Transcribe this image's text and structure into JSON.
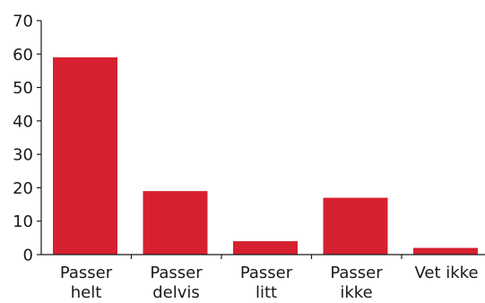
{
  "chart_data": {
    "type": "bar",
    "categories": [
      [
        "Passer",
        "helt"
      ],
      [
        "Passer",
        "delvis"
      ],
      [
        "Passer",
        "litt"
      ],
      [
        "Passer",
        "ikke"
      ],
      [
        "Vet ikke"
      ]
    ],
    "values": [
      59,
      19,
      4,
      17,
      2
    ],
    "ylim": [
      0,
      70
    ],
    "yticks": [
      0,
      10,
      20,
      30,
      40,
      50,
      60,
      70
    ],
    "title": "",
    "xlabel": "",
    "ylabel": "",
    "bar_color": "#d7202f",
    "grid": false,
    "legend": "none"
  }
}
